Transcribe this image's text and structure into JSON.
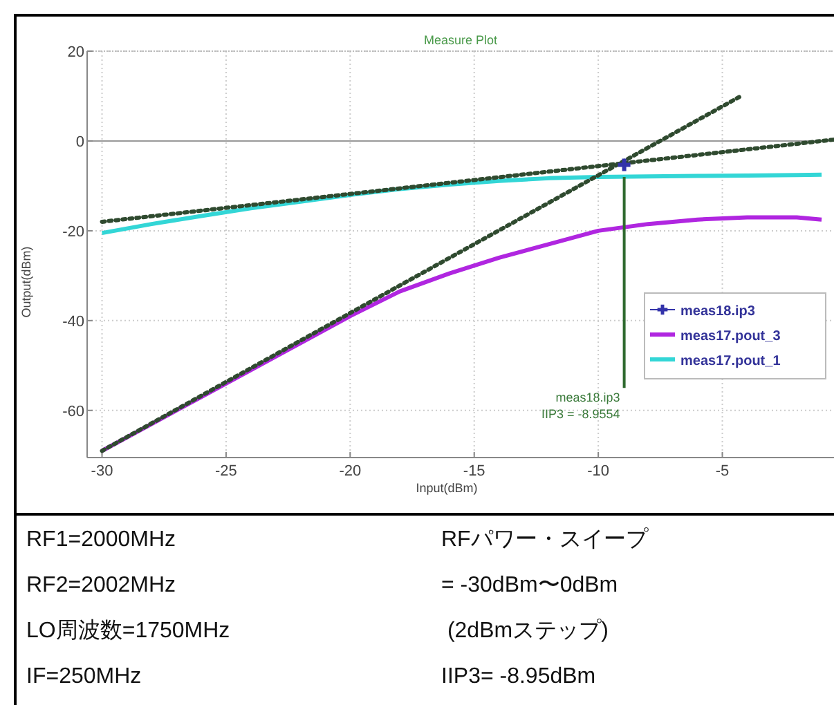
{
  "chart_data": {
    "type": "line",
    "title": "Measure Plot",
    "xlabel": "Input(dBm)",
    "ylabel": "Output(dBm)",
    "xlim": [
      -30.6,
      -0.5
    ],
    "ylim": [
      -70.5,
      20
    ],
    "xticks": [
      -30,
      -25,
      -20,
      -15,
      -10,
      -5
    ],
    "yticks": [
      -60,
      -40,
      -20,
      0,
      20
    ],
    "grid": true,
    "legend": "right",
    "line_style": "solid",
    "x": [
      -30,
      -28,
      -26,
      -24,
      -22,
      -20,
      -18,
      -16,
      -14,
      -12,
      -10,
      -8,
      -6,
      -4,
      -2,
      -1
    ],
    "series": [
      {
        "name": "meas18.ip3",
        "color": "#3333aa",
        "type": "scatter",
        "marker": "cross",
        "x": [
          -8.9554
        ],
        "values": [
          -5.3
        ]
      },
      {
        "name": "meas17.pout_3",
        "color": "#b026e0",
        "values": [
          -69,
          -63,
          -57,
          -51,
          -45,
          -39,
          -33.5,
          -29.5,
          -26,
          -23,
          -20,
          -18.5,
          -17.5,
          -17,
          -17,
          -17.5
        ]
      },
      {
        "name": "meas17.pout_1",
        "color": "#33d6d6",
        "values": [
          -20.5,
          -18.5,
          -16.7,
          -15,
          -13.5,
          -12,
          -10.7,
          -9.7,
          -8.9,
          -8.3,
          -8,
          -7.9,
          -7.8,
          -7.7,
          -7.6,
          -7.5
        ]
      },
      {
        "color": "#2f4a2f",
        "line_style": "dotted",
        "x": [
          -30,
          -0.5
        ],
        "values": [
          -18,
          0.3
        ]
      },
      {
        "color": "#2f4a2f",
        "line_style": "dotted",
        "x": [
          -30,
          -4.25
        ],
        "values": [
          -69,
          10
        ]
      },
      {
        "color": "#2f6a2f",
        "x": [
          -8.9554,
          -8.9554
        ],
        "values": [
          -8,
          -55
        ]
      }
    ],
    "ref_lines": [
      {
        "axis": "y",
        "value": 0,
        "color": "#999999"
      }
    ],
    "annotations": [
      {
        "text": "meas18.ip3\nIIP3 = -8.9554",
        "x": -8.9554,
        "y": -55
      },
      "RF1=2000MHz",
      "RF2=2002MHz",
      "LO周波数=1750MHz",
      "IF=250MHz",
      "RFパワー・スイープ",
      "= -30dBm〜0dBm",
      " (2dBmステップ)",
      "IIP3= -8.95dBm"
    ]
  }
}
